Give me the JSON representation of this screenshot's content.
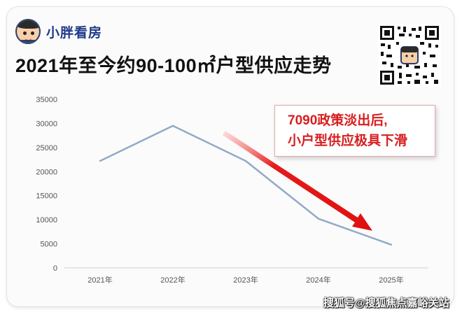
{
  "brand": {
    "name": "小胖看房",
    "logo_icon": "cartoon-avatar-icon"
  },
  "title": "2021年至今约90-100㎡户型供应走势",
  "qr_icon": "qr-code-icon",
  "callout": {
    "line1": "7090政策淡出后,",
    "line2": "小户型供应极具下滑"
  },
  "watermark": "搜狐号@搜狐焦点嘉峪关站",
  "colors": {
    "line": "#92aac7",
    "arrow": "#e01010",
    "callout_text": "#d81e1e",
    "brand": "#1f3a8a"
  },
  "chart_data": {
    "type": "line",
    "title": "2021年至今约90-100㎡户型供应走势",
    "categories": [
      "2021年",
      "2022年",
      "2023年",
      "2024年",
      "2025年"
    ],
    "series": [
      {
        "values": [
          22200,
          29500,
          22200,
          10200,
          4800
        ]
      }
    ],
    "ylim": [
      0,
      35000
    ],
    "yticks": [
      0,
      5000,
      10000,
      15000,
      20000,
      25000,
      30000,
      35000
    ],
    "grid": false,
    "annotation": "7090政策淡出后,小户型供应极具下滑"
  }
}
